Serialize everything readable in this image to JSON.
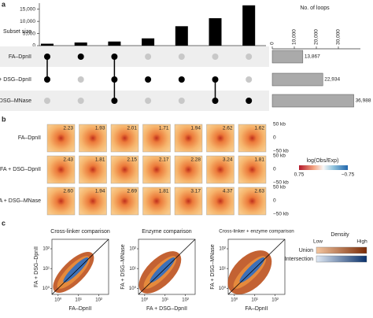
{
  "panel_labels": [
    "a",
    "b",
    "c"
  ],
  "chart_data": [
    {
      "type": "bar",
      "y_label": "Subset size",
      "color": "#000000",
      "categories": [
        null,
        null,
        null,
        null,
        null,
        null,
        null
      ],
      "values": [
        800,
        1300,
        1700,
        3000,
        8000,
        11300,
        16600
      ],
      "membership": [
        [
          true,
          true,
          false
        ],
        [
          true,
          false,
          false
        ],
        [
          true,
          true,
          true
        ],
        [
          false,
          true,
          false
        ],
        [
          false,
          true,
          false
        ],
        [
          false,
          true,
          true
        ],
        [
          false,
          false,
          true
        ]
      ],
      "ylim": [
        0,
        17500
      ],
      "yticks": [
        0,
        {
          "value": 5000,
          "label": "5,000"
        },
        {
          "value": 10000,
          "label": "10,000"
        },
        {
          "value": 15000,
          "label": "15,000"
        }
      ]
    },
    {
      "type": "hbar",
      "title": "No. of loops",
      "color": "#aaaaaa",
      "categories": [
        "FA–DpnII",
        "FA + DSG–DpnII",
        "FA + DSG–MNase"
      ],
      "values": [
        13867,
        22934,
        36988
      ],
      "value_labels": [
        "13,867",
        "22,934",
        "36,988"
      ],
      "xlim": [
        0,
        40000
      ],
      "xticks": [
        0,
        {
          "value": 10000,
          "label": "10,000"
        },
        {
          "value": 20000,
          "label": "20,000"
        },
        {
          "value": 30000,
          "label": "30,000"
        }
      ]
    },
    {
      "type": "heatmap-grid",
      "rows": [
        "FA–DpnII",
        "FA + DSG–DpnII",
        "FA + DSG–MNase"
      ],
      "values": [
        [
          2.23,
          1.93,
          2.01,
          1.71,
          1.94,
          2.62,
          1.62
        ],
        [
          2.43,
          1.81,
          2.15,
          2.17,
          2.28,
          3.24,
          1.81
        ],
        [
          2.6,
          1.94,
          2.69,
          1.81,
          3.17,
          4.37,
          2.63
        ]
      ],
      "value_labels": [
        [
          "2.23",
          "1.93",
          "2.01",
          "1.71",
          "1.94",
          "2.62",
          "1.62"
        ],
        [
          "2.43",
          "1.81",
          "2.15",
          "2.17",
          "2.28",
          "3.24",
          "1.81"
        ],
        [
          "2.60",
          "1.94",
          "2.69",
          "1.81",
          "3.17",
          "4.37",
          "2.63"
        ]
      ],
      "side_ticks": [
        "50 kb",
        "0",
        "−50 kb"
      ],
      "colorbar_title": "log(Obs/Exp)",
      "colorbar_ticks": [
        "0.75",
        "−0.75"
      ]
    },
    {
      "type": "scatter-density",
      "panels": [
        {
          "title": "Cross-linker comparison",
          "x_label": "FA–DpnII",
          "y_label": "FA + DSG–DpnII"
        },
        {
          "title": "Enzyme comparison",
          "x_label": "FA + DSG–DpnII",
          "y_label": "FA + DSG–MNase"
        },
        {
          "title": "Cross-linker + enzyme comparison",
          "x_label": "FA–DpnII",
          "y_label": "FA + DSG–MNase"
        }
      ],
      "log_scale": true,
      "xlim": [
        0.5,
        300
      ],
      "ylim": [
        0.5,
        300
      ],
      "xticks": [
        {
          "value": 1,
          "label": "10⁰"
        },
        {
          "value": 10,
          "label": "10¹"
        },
        {
          "value": 100,
          "label": "10²"
        }
      ],
      "yticks": [
        {
          "value": 1,
          "label": "10⁰"
        },
        {
          "value": 10,
          "label": "10¹"
        },
        {
          "value": 100,
          "label": "10²"
        }
      ],
      "legend_title": "Density",
      "legend_low": "Low",
      "legend_high": "High",
      "legend_rows": [
        "Union",
        "Intersection"
      ]
    }
  ]
}
